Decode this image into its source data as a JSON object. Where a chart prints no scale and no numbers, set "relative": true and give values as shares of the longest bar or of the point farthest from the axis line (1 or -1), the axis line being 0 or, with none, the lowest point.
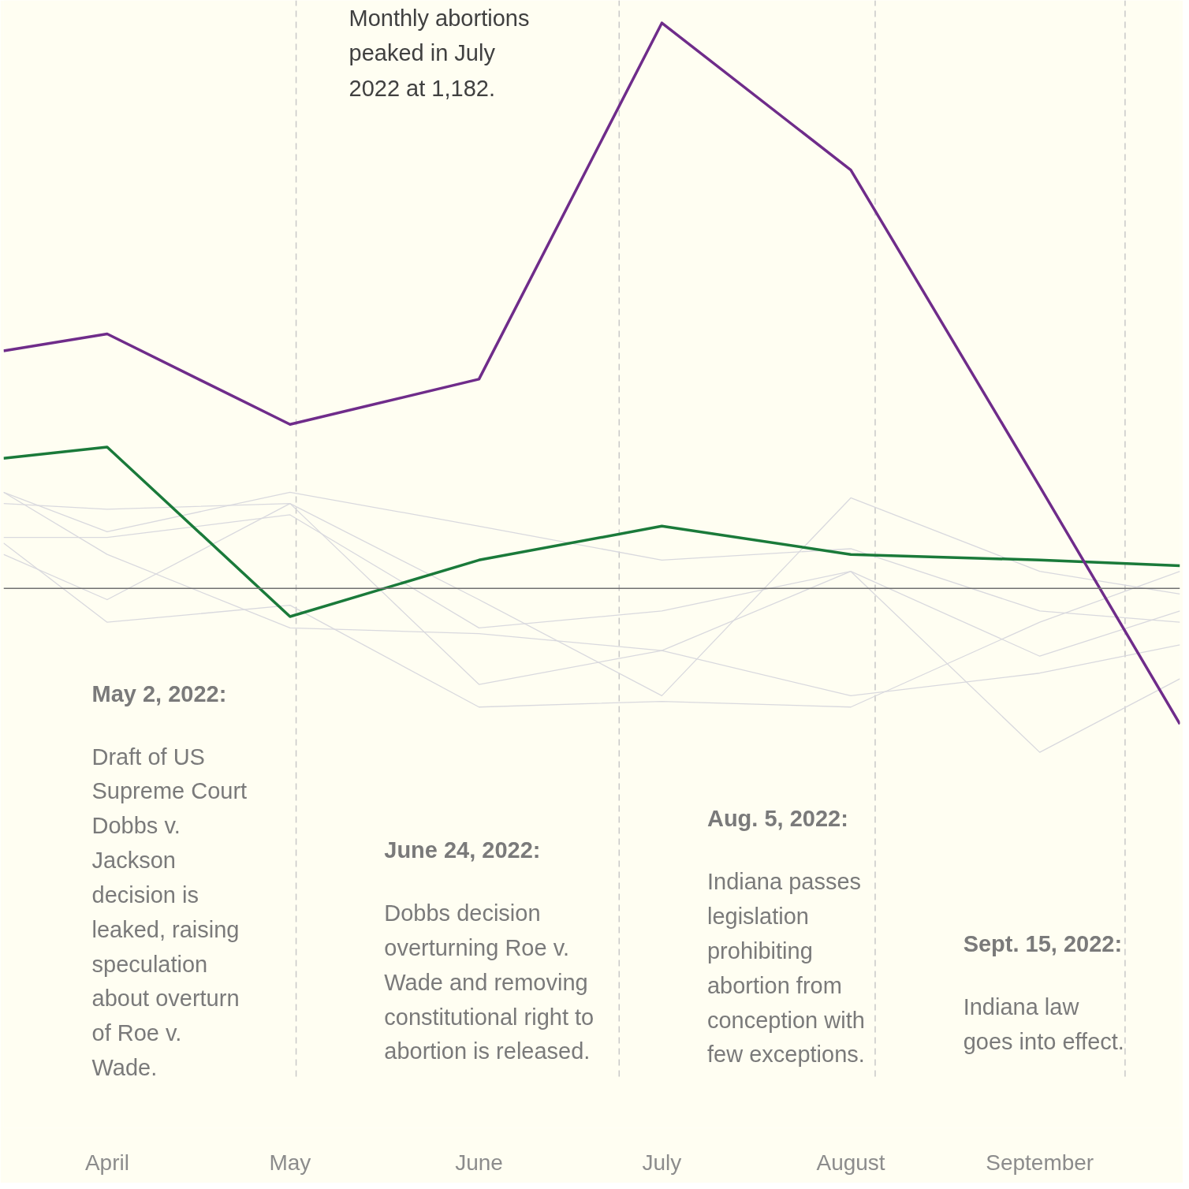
{
  "chart_data": {
    "type": "line",
    "relative": true,
    "x": [
      "2022-03-15",
      "2022-04-01",
      "2022-05-01",
      "2022-06-01",
      "2022-07-01",
      "2022-08-01",
      "2022-09-01",
      "2022-09-24"
    ],
    "xlim": [
      "2022-03-15",
      "2022-09-24"
    ],
    "xticks": [
      {
        "value": "2022-04-01",
        "label": "April"
      },
      {
        "value": "2022-05-01",
        "label": "May"
      },
      {
        "value": "2022-06-01",
        "label": "June"
      },
      {
        "value": "2022-07-01",
        "label": "July"
      },
      {
        "value": "2022-08-01",
        "label": "August"
      },
      {
        "value": "2022-09-01",
        "label": "September"
      }
    ],
    "series": [
      {
        "color": "#d9d9de",
        "values": [
          0.17,
          0.1,
          0.17,
          0.11,
          0.05,
          0.07,
          -0.04,
          -0.06
        ]
      },
      {
        "color": "#d9d9de",
        "values": [
          0.15,
          0.14,
          0.15,
          -0.02,
          -0.19,
          0.16,
          0.03,
          -0.01
        ]
      },
      {
        "color": "#d9d9de",
        "values": [
          0.09,
          0.09,
          0.13,
          -0.07,
          -0.04,
          0.03,
          -0.12,
          -0.04
        ]
      },
      {
        "color": "#d9d9de",
        "values": [
          0.06,
          -0.02,
          0.15,
          -0.17,
          -0.11,
          -0.19,
          -0.15,
          -0.1
        ]
      },
      {
        "color": "#d9d9de",
        "values": [
          0.08,
          -0.06,
          -0.03,
          -0.21,
          -0.2,
          -0.21,
          -0.06,
          0.03
        ]
      },
      {
        "color": "#d9d9de",
        "values": [
          0.17,
          0.06,
          -0.07,
          -0.08,
          -0.11,
          0.03,
          -0.29,
          -0.16
        ]
      },
      {
        "color": "#1a7a3a",
        "values": [
          0.23,
          0.25,
          -0.05,
          0.05,
          0.11,
          0.06,
          0.05,
          0.04
        ]
      },
      {
        "color": "#6f2c8a",
        "values": [
          0.42,
          0.45,
          0.29,
          0.37,
          1,
          0.74,
          0.18,
          -0.24
        ]
      }
    ],
    "ref_lines": [
      {
        "axis": "y",
        "value": 0,
        "color": "#707070",
        "line_style": "solid",
        "label": null
      },
      {
        "axis": "x",
        "value": "2022-05-02",
        "color": "#c8c8c8",
        "line_style": "dashed",
        "label": "May 2, 2022:\n\nDraft of US\nSupreme Court\nDobbs v.\nJackson\ndecision is\nleaked, raising\nspeculation\nabout overturn\nof Roe v.\nWade."
      },
      {
        "axis": "x",
        "value": "2022-06-24",
        "color": "#c8c8c8",
        "line_style": "dashed",
        "label": "June 24, 2022:\n\nDobbs decision\noverturning Roe v.\nWade and removing\nconstitutional right to\nabortion is released."
      },
      {
        "axis": "x",
        "value": "2022-08-05",
        "color": "#c8c8c8",
        "line_style": "dashed",
        "label": "Aug. 5, 2022:\n\nIndiana passes\nlegislation\nprohibiting\nabortion from\nconception with\nfew exceptions."
      },
      {
        "axis": "x",
        "value": "2022-09-15",
        "color": "#c8c8c8",
        "line_style": "dashed",
        "label": "Sept. 15, 2022:\n\nIndiana law\ngoes into effect."
      }
    ],
    "annotations": [
      "Monthly abortions\npeaked in July\n2022  at 1,182."
    ],
    "grid": false,
    "line_style": "solid",
    "marker": "none"
  }
}
